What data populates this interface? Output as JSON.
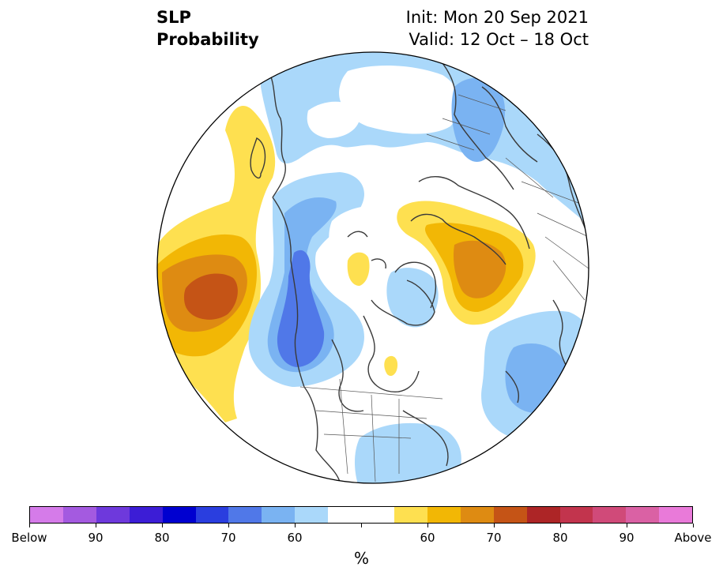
{
  "title": {
    "variable": "SLP",
    "product": "Probability",
    "init": "Init: Mon 20 Sep 2021",
    "valid": "Valid: 12 Oct – 18 Oct"
  },
  "colorbar": {
    "colors": [
      "#d57be9",
      "#a45ae0",
      "#6e39dc",
      "#3c1dd6",
      "#0000d0",
      "#2a3edf",
      "#5078e8",
      "#7ab3f2",
      "#aad8fa",
      "#ffffff",
      "#ffffff",
      "#fee050",
      "#f2b705",
      "#de8b12",
      "#c55416",
      "#ad2526",
      "#c2344d",
      "#d04a79",
      "#da61a4",
      "#e97ad9"
    ],
    "labels": [
      "Below",
      "90",
      "80",
      "70",
      "60",
      "60",
      "70",
      "80",
      "90",
      "Above"
    ],
    "unit": "%"
  },
  "map": {
    "projection": "north-polar-stereographic",
    "anomalies": [
      {
        "region": "Gulf of Alaska / North Pacific",
        "sign": "above",
        "peak_pct": 70
      },
      {
        "region": "Western Canada / Yukon",
        "sign": "below",
        "peak_pct": 70
      },
      {
        "region": "Northern Siberia / Kara Sea",
        "sign": "above",
        "peak_pct": 70
      },
      {
        "region": "North Atlantic",
        "sign": "below",
        "peak_pct": 60
      },
      {
        "region": "Scandinavia / Russia",
        "sign": "below",
        "peak_pct": 60
      },
      {
        "region": "Eastern United States",
        "sign": "below",
        "peak_pct": 50
      }
    ]
  }
}
